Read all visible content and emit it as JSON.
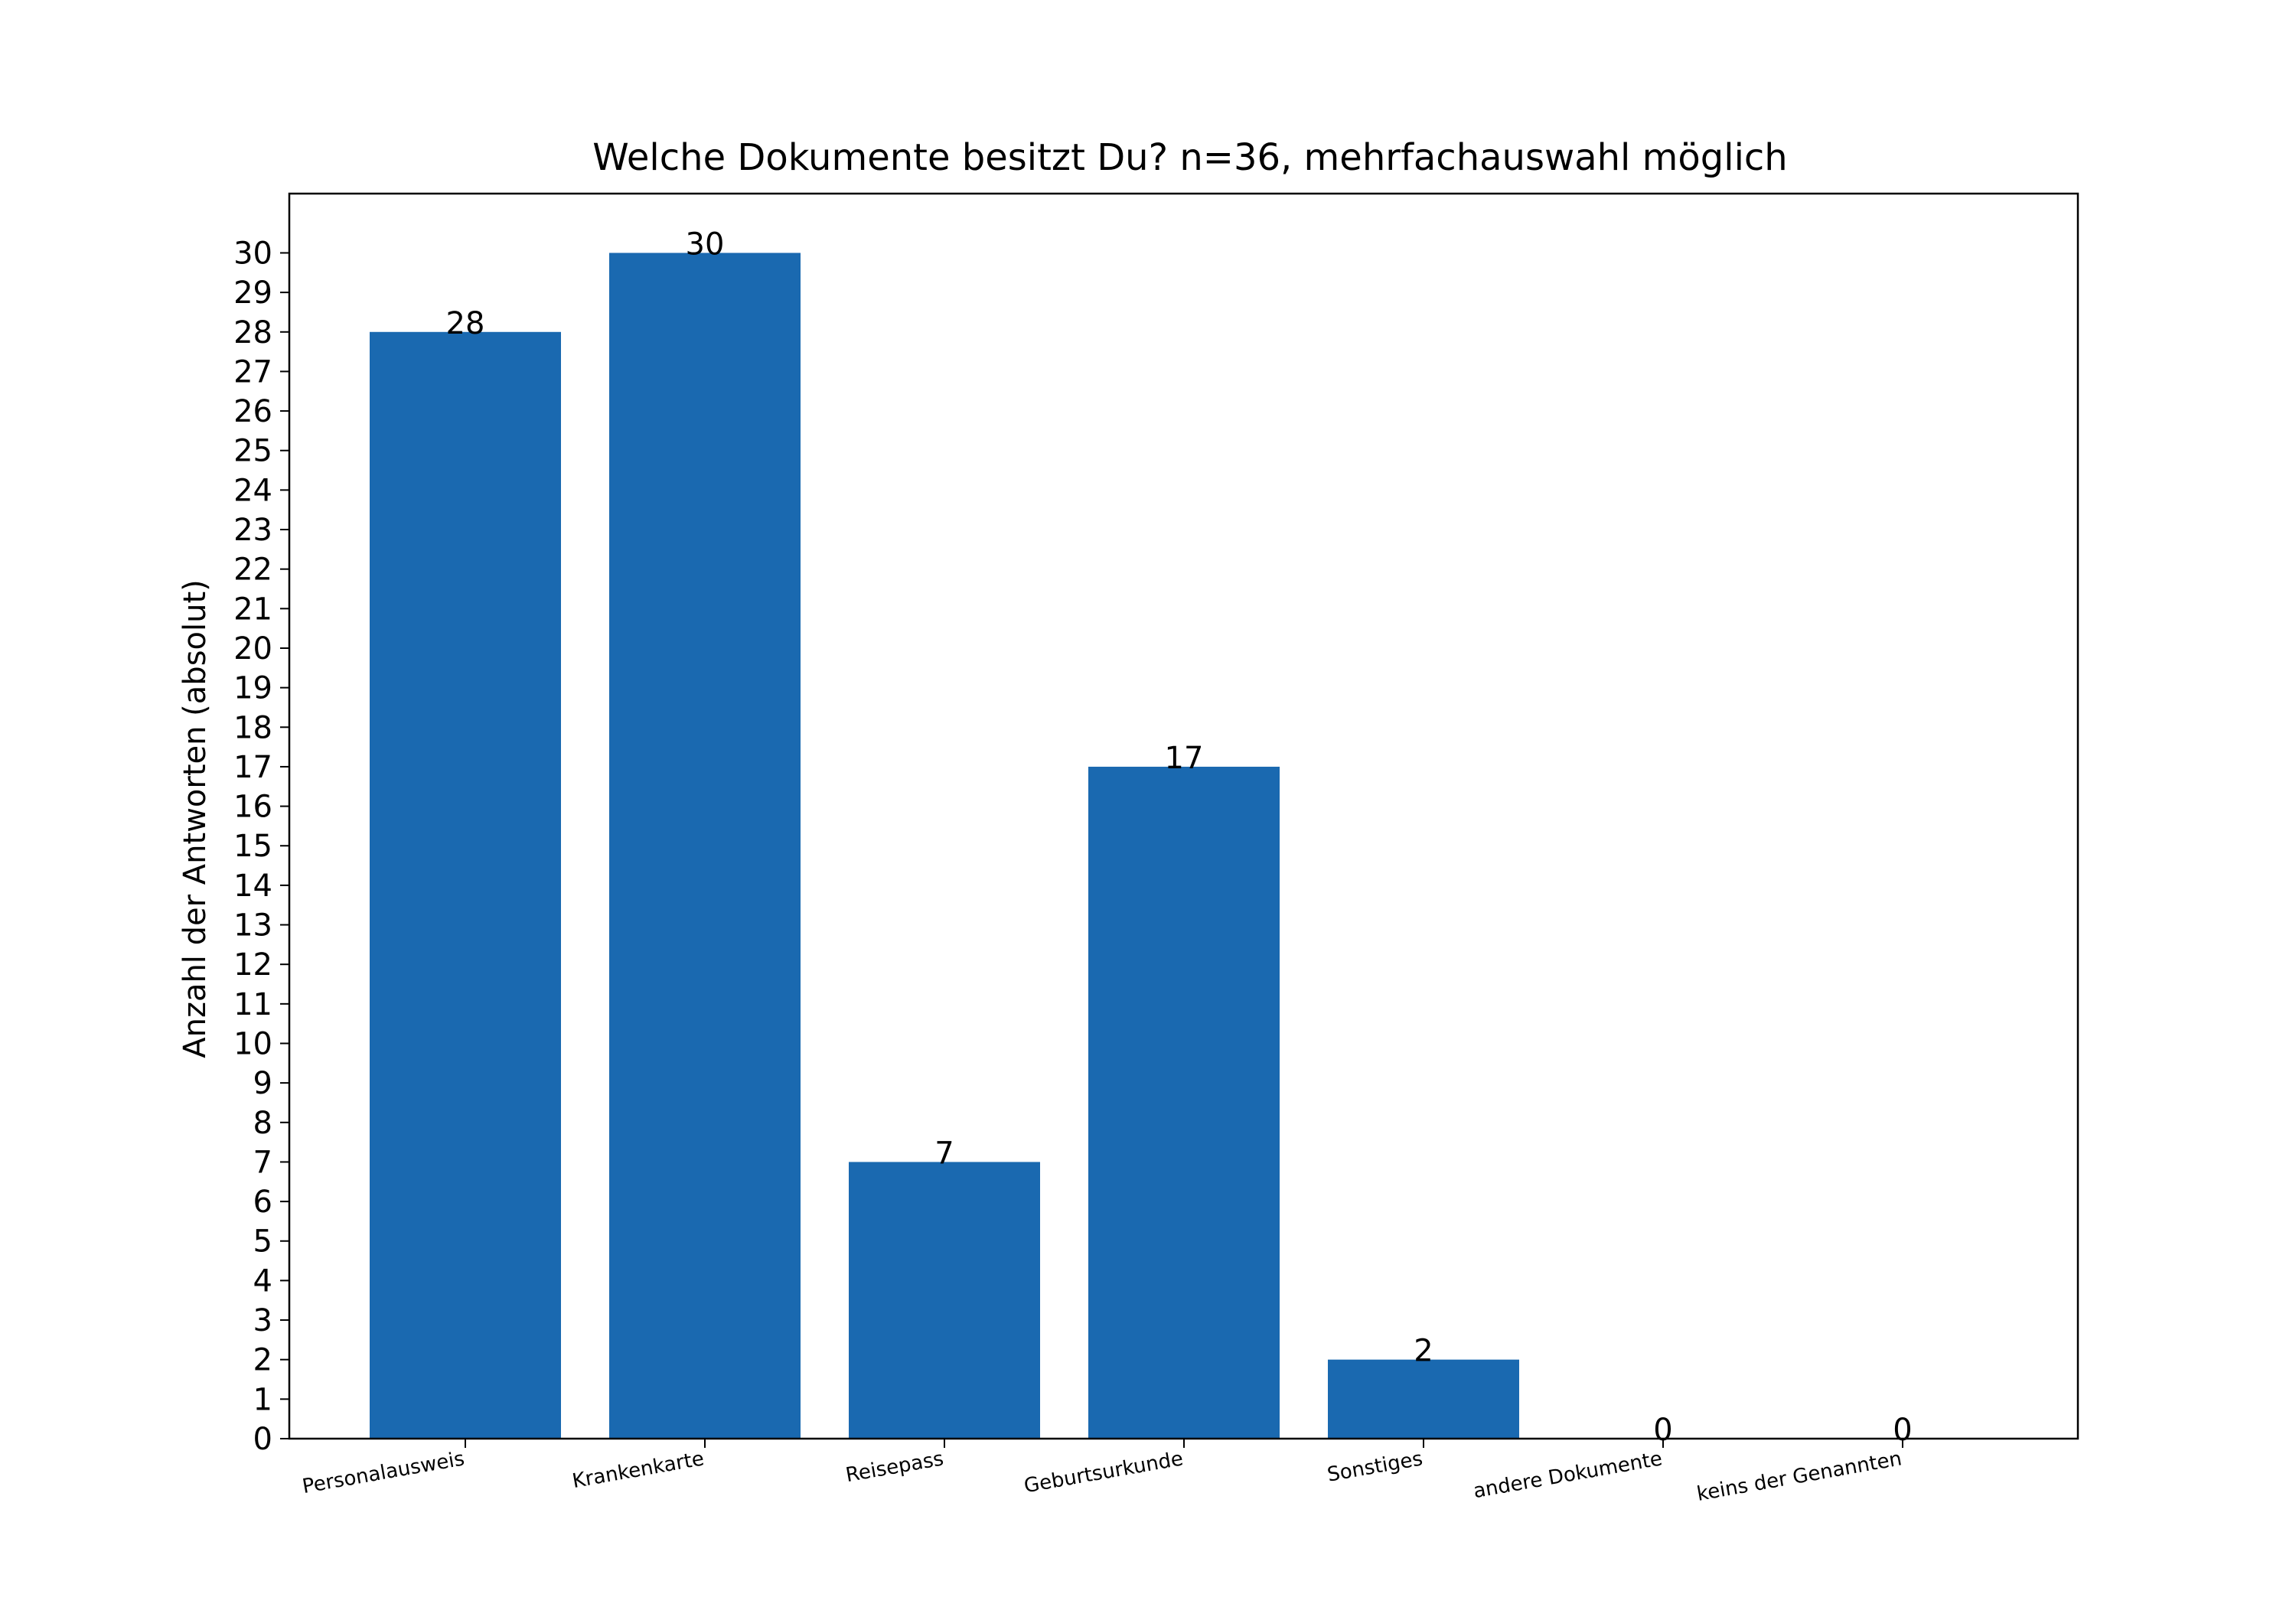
{
  "chart_data": {
    "type": "bar",
    "title": "Welche Dokumente besitzt Du? n=36, mehrfachauswahl möglich",
    "xlabel": "",
    "ylabel": "Anzahl der Antworten (absolut)",
    "categories": [
      "Personalausweis",
      "Krankenkarte",
      "Reisepass",
      "Geburtsurkunde",
      "Sonstiges",
      "andere Dokumente",
      "keins der Genannten"
    ],
    "values": [
      28,
      30,
      7,
      17,
      2,
      0,
      0
    ],
    "data_labels": [
      "28",
      "30",
      "7",
      "17",
      "2",
      "0",
      "0"
    ],
    "ylim": [
      0,
      31.5
    ],
    "yticks": [
      0,
      1,
      2,
      3,
      4,
      5,
      6,
      7,
      8,
      9,
      10,
      11,
      12,
      13,
      14,
      15,
      16,
      17,
      18,
      19,
      20,
      21,
      22,
      23,
      24,
      25,
      26,
      27,
      28,
      29,
      30
    ],
    "grid": false,
    "legend": "none",
    "bar_color": "#1a69b0"
  }
}
